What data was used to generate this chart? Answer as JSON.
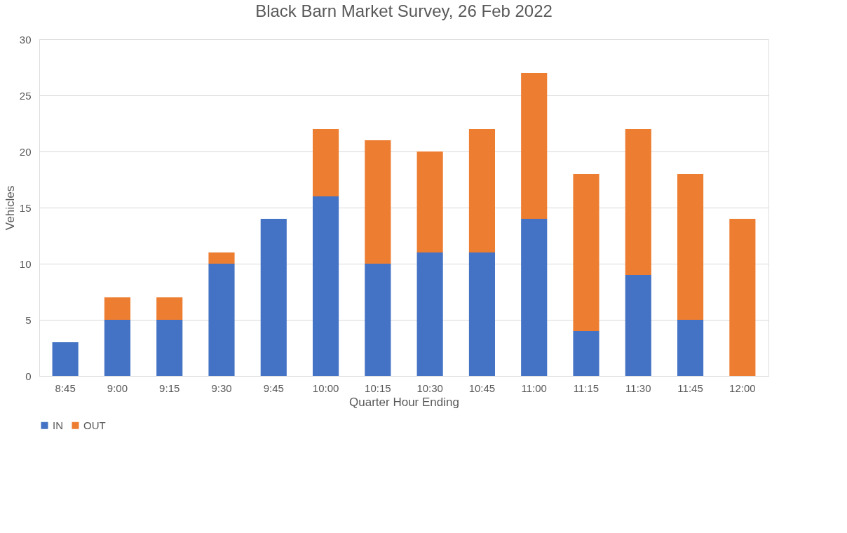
{
  "chart_data": {
    "type": "bar",
    "title": "Black Barn Market Survey, 26 Feb 2022",
    "xlabel": "Quarter Hour Ending",
    "ylabel": "Vehicles",
    "categories": [
      "8:45",
      "9:00",
      "9:15",
      "9:30",
      "9:45",
      "10:00",
      "10:15",
      "10:30",
      "10:45",
      "11:00",
      "11:15",
      "11:30",
      "11:45",
      "12:00"
    ],
    "series": [
      {
        "name": "IN",
        "color": "#4472c4",
        "values": [
          3,
          5,
          5,
          10,
          14,
          16,
          10,
          11,
          11,
          14,
          4,
          9,
          5,
          0
        ]
      },
      {
        "name": "OUT",
        "color": "#ed7d31",
        "values": [
          0,
          2,
          2,
          1,
          0,
          6,
          11,
          9,
          11,
          13,
          14,
          13,
          13,
          14
        ]
      }
    ],
    "stacked": true,
    "ylim": [
      0,
      30
    ],
    "yticks": [
      0,
      5,
      10,
      15,
      20,
      25,
      30
    ],
    "grid": "y",
    "legend": "bottom"
  }
}
